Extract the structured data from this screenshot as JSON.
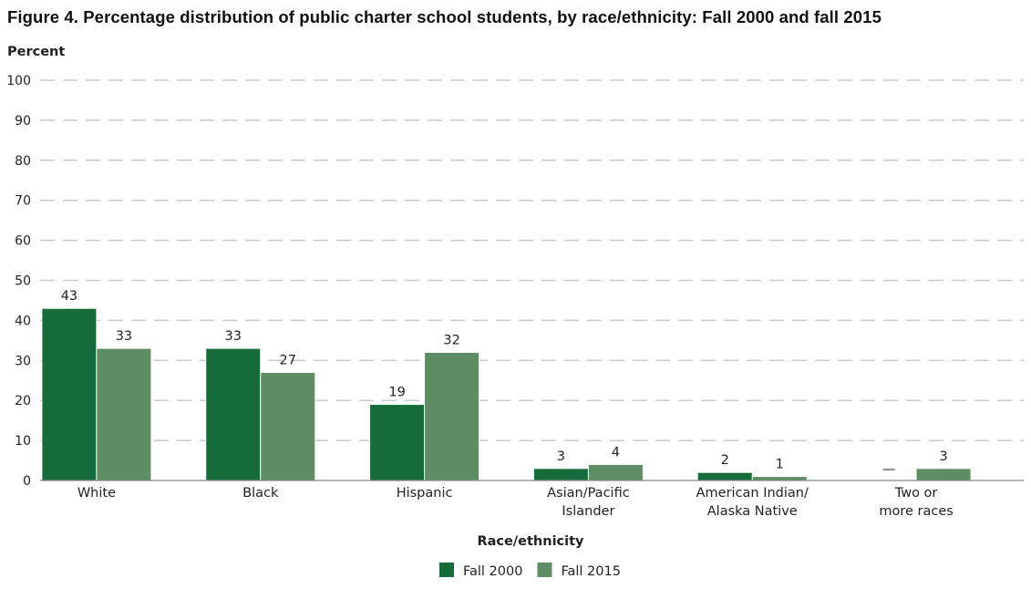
{
  "title": "Figure 4. Percentage distribution of public charter school students, by race/ethnicity: Fall 2000 and fall 2015",
  "chart_data": {
    "type": "bar",
    "ylabel": "Percent",
    "xlabel": "Race/ethnicity",
    "ylim": [
      0,
      100
    ],
    "yticks": [
      0,
      10,
      20,
      30,
      40,
      50,
      60,
      70,
      80,
      90,
      100
    ],
    "grid": true,
    "legend_position": "bottom",
    "categories": [
      [
        "White"
      ],
      [
        "Black"
      ],
      [
        "Hispanic"
      ],
      [
        "Asian/Pacific",
        "Islander"
      ],
      [
        "American Indian/",
        "Alaska Native"
      ],
      [
        "Two or",
        "more races"
      ]
    ],
    "series": [
      {
        "name": "Fall 2000",
        "color": "#156b3a",
        "values": [
          43,
          33,
          19,
          3,
          2,
          null
        ],
        "labels": [
          "43",
          "33",
          "19",
          "3",
          "2",
          "—"
        ]
      },
      {
        "name": "Fall 2015",
        "color": "#5e8c63",
        "values": [
          33,
          27,
          32,
          4,
          1,
          3
        ],
        "labels": [
          "33",
          "27",
          "32",
          "4",
          "1",
          "3"
        ]
      }
    ]
  }
}
